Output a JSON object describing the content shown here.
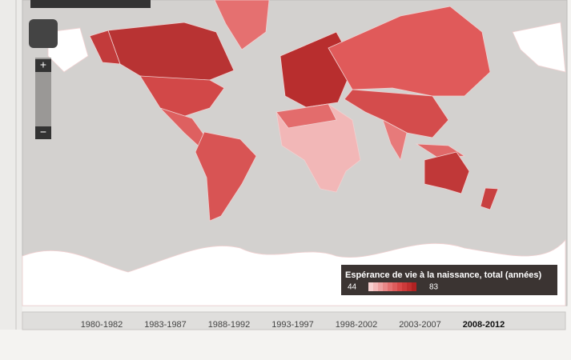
{
  "legend": {
    "title": "Espérance de vie à la naissance, total (années)",
    "min": "44",
    "max": "83"
  },
  "timeline": {
    "periods": [
      "1980-1982",
      "1983-1987",
      "1988-1992",
      "1993-1997",
      "1998-2002",
      "2003-2007",
      "2008-2012"
    ]
  }
}
